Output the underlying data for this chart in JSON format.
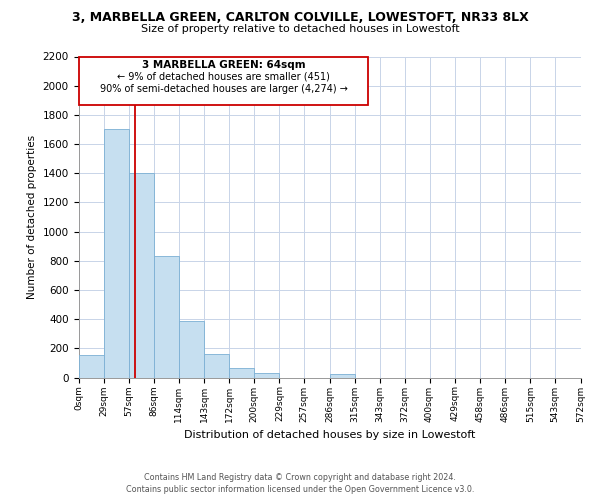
{
  "title_line1": "3, MARBELLA GREEN, CARLTON COLVILLE, LOWESTOFT, NR33 8LX",
  "title_line2": "Size of property relative to detached houses in Lowestoft",
  "xlabel": "Distribution of detached houses by size in Lowestoft",
  "ylabel": "Number of detached properties",
  "bin_edges": [
    0,
    29,
    57,
    86,
    114,
    143,
    172,
    200,
    229,
    257,
    286,
    315,
    343,
    372,
    400,
    429,
    458,
    486,
    515,
    543,
    572
  ],
  "bin_labels": [
    "0sqm",
    "29sqm",
    "57sqm",
    "86sqm",
    "114sqm",
    "143sqm",
    "172sqm",
    "200sqm",
    "229sqm",
    "257sqm",
    "286sqm",
    "315sqm",
    "343sqm",
    "372sqm",
    "400sqm",
    "429sqm",
    "458sqm",
    "486sqm",
    "515sqm",
    "543sqm",
    "572sqm"
  ],
  "bar_heights": [
    155,
    1700,
    1400,
    830,
    385,
    165,
    65,
    30,
    0,
    0,
    25,
    0,
    0,
    0,
    0,
    0,
    0,
    0,
    0,
    0
  ],
  "bar_color": "#c6dff0",
  "bar_edge_color": "#7bafd4",
  "property_line_x": 64,
  "property_line_color": "#cc0000",
  "ylim": [
    0,
    2200
  ],
  "yticks": [
    0,
    200,
    400,
    600,
    800,
    1000,
    1200,
    1400,
    1600,
    1800,
    2000,
    2200
  ],
  "annotation_text_line1": "3 MARBELLA GREEN: 64sqm",
  "annotation_text_line2": "← 9% of detached houses are smaller (451)",
  "annotation_text_line3": "90% of semi-detached houses are larger (4,274) →",
  "footer_line1": "Contains HM Land Registry data © Crown copyright and database right 2024.",
  "footer_line2": "Contains public sector information licensed under the Open Government Licence v3.0.",
  "background_color": "#ffffff",
  "grid_color": "#c8d4e8"
}
